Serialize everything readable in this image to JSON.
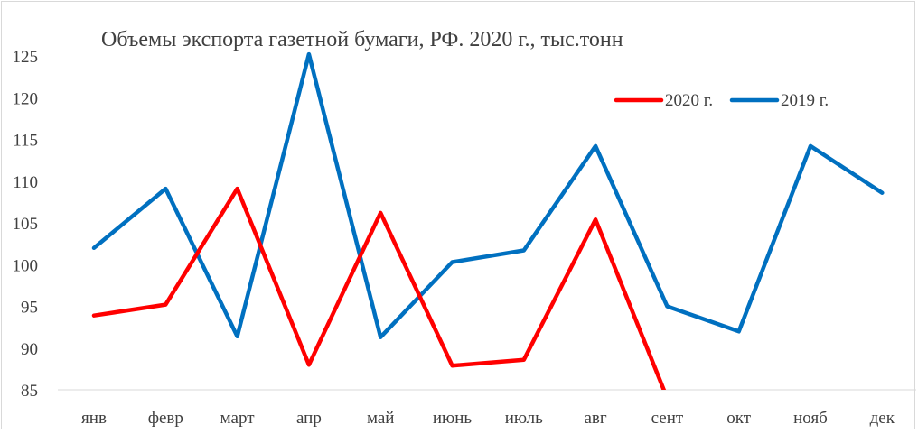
{
  "chart_data": {
    "type": "line",
    "title": "Объемы экспорта газетной бумаги, РФ. 2020 г., тыс.тонн",
    "xlabel": "",
    "ylabel": "",
    "categories": [
      "янв",
      "февр",
      "март",
      "апр",
      "май",
      "июнь",
      "июль",
      "авг",
      "сент",
      "окт",
      "нояб",
      "дек"
    ],
    "ylim": [
      85,
      125
    ],
    "yticks": [
      85,
      90,
      95,
      100,
      105,
      110,
      115,
      120,
      125
    ],
    "grid": false,
    "legend_position": "top-right",
    "series": [
      {
        "name": "2020 г.",
        "color": "#ff0000",
        "values": [
          93.9,
          95.2,
          109.1,
          88.0,
          106.2,
          87.9,
          88.6,
          105.4,
          84.0,
          null,
          null,
          null
        ]
      },
      {
        "name": "2019 г.",
        "color": "#0070c0",
        "values": [
          102.0,
          109.1,
          91.4,
          125.2,
          91.3,
          100.3,
          101.7,
          114.2,
          95.0,
          92.0,
          114.2,
          108.6
        ]
      }
    ]
  }
}
